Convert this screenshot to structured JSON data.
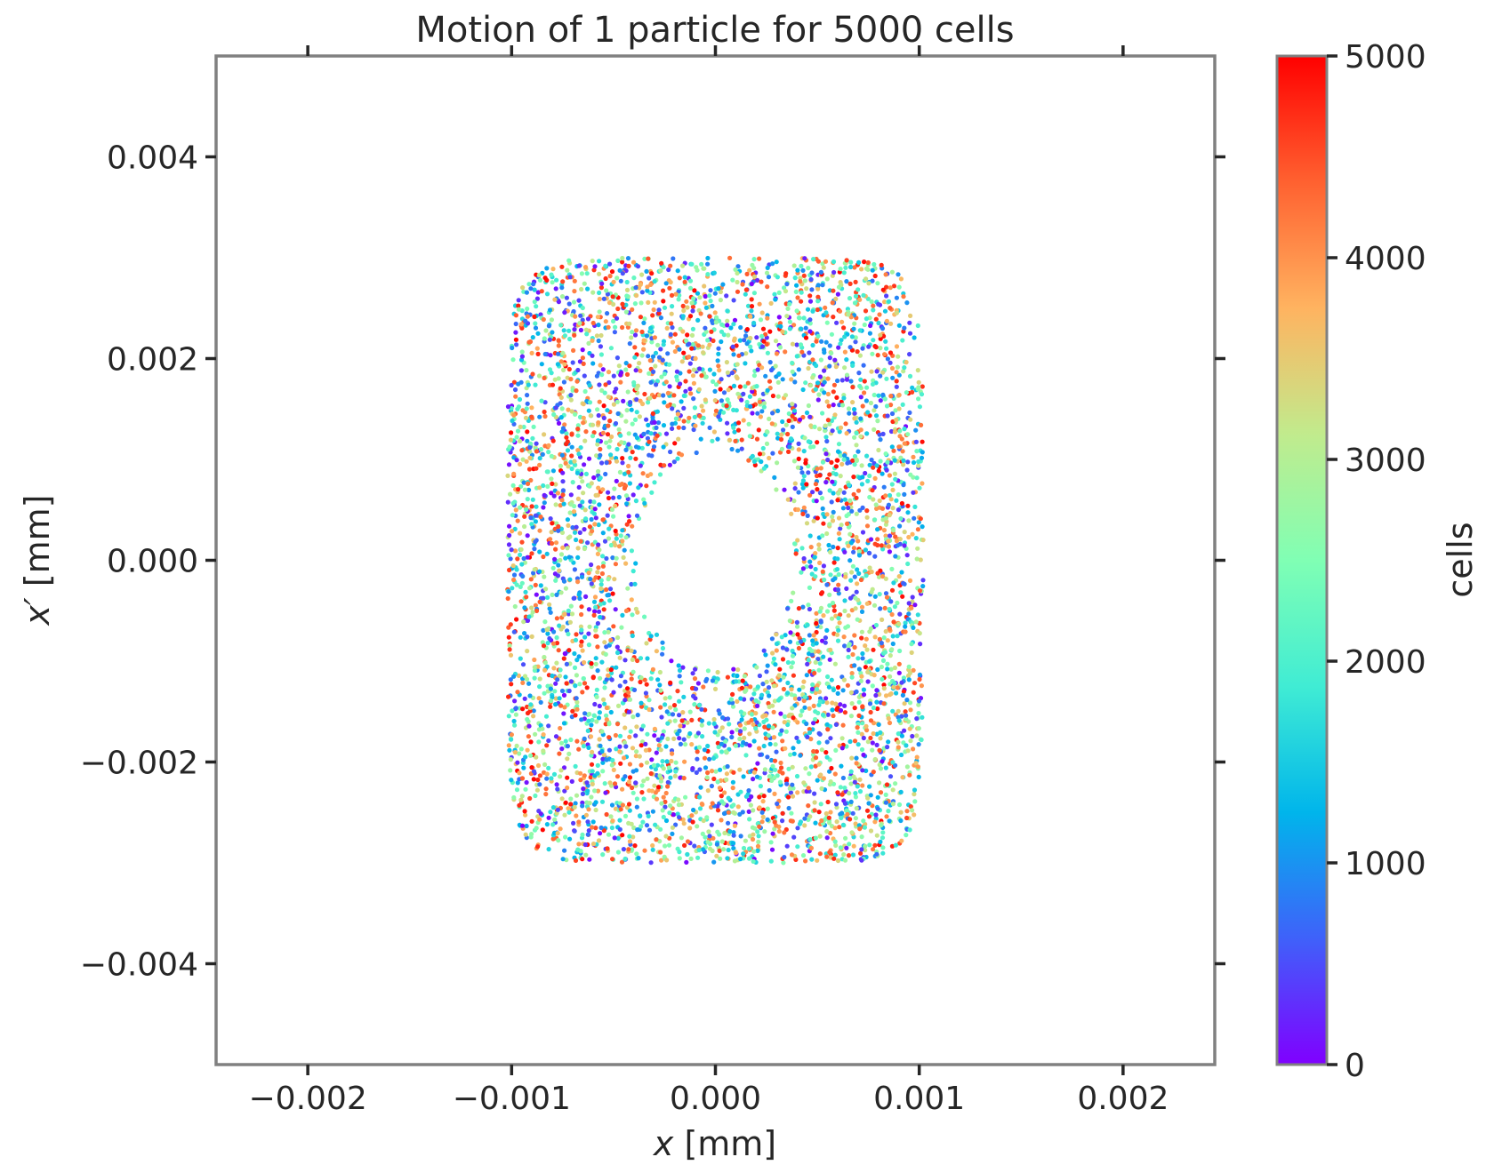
{
  "chart_data": {
    "type": "scatter",
    "title": "Motion of 1 particle for 5000 cells",
    "xlabel": {
      "var": "x",
      "unit": " [mm]"
    },
    "ylabel": {
      "var": "x′",
      "unit": " [mm]"
    },
    "xlim": [
      -0.00245,
      0.00245
    ],
    "ylim": [
      -0.005,
      0.005
    ],
    "xticks": [
      -0.002,
      -0.001,
      0.0,
      0.001,
      0.002
    ],
    "xtick_labels": [
      "−0.002",
      "−0.001",
      "0.000",
      "0.001",
      "0.002"
    ],
    "yticks": [
      0.004,
      0.002,
      0.0,
      -0.002,
      -0.004
    ],
    "ytick_labels": [
      "0.004",
      "0.002",
      "0.000",
      "−0.002",
      "−0.004"
    ],
    "grid": false,
    "colorbar": {
      "label": "cells",
      "range": [
        0,
        5000
      ],
      "ticks": [
        0,
        1000,
        2000,
        3000,
        4000,
        5000
      ],
      "tick_labels": [
        "0",
        "1000",
        "2000",
        "3000",
        "4000",
        "5000"
      ],
      "colormap": "rainbow",
      "stops": [
        "#8000ff",
        "#3f61fa",
        "#00b5eb",
        "#40ecd4",
        "#80ffb4",
        "#c1eb8d",
        "#ffb360",
        "#ff6130",
        "#ff0000"
      ]
    },
    "series": [
      {
        "count": 5000,
        "color_by": "cells",
        "distribution": {
          "outer_x_halfwidth": 0.00102,
          "outer_y_halfheight": 0.003,
          "hole_x_radius": 0.00039,
          "hole_y_radius": 0.00108
        }
      }
    ]
  }
}
